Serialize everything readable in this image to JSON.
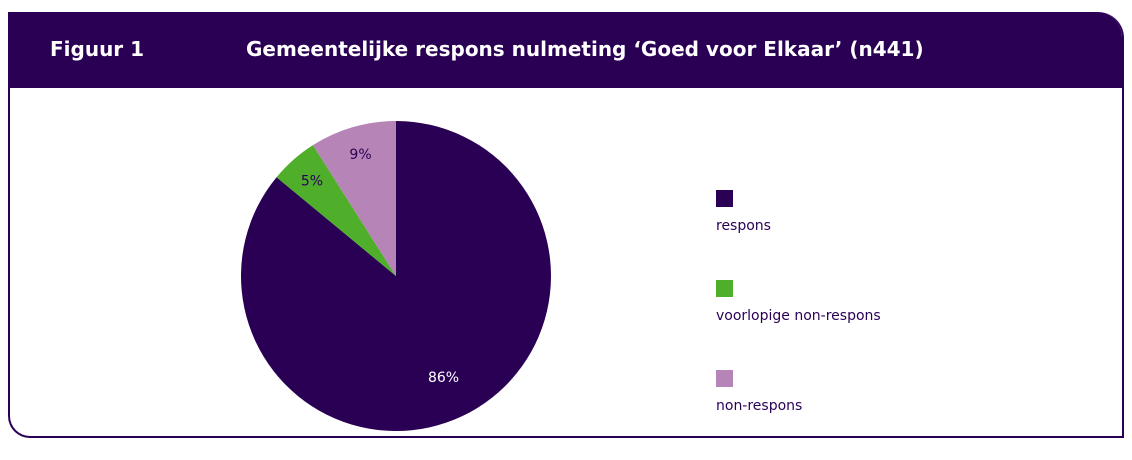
{
  "header": {
    "figure_label": "Figuur 1",
    "title": "Gemeentelijke respons nulmeting ‘Goed voor Elkaar’ (n441)"
  },
  "chart_data": {
    "type": "pie",
    "title": "Gemeentelijke respons nulmeting ‘Goed voor Elkaar’ (n441)",
    "slices": [
      {
        "name": "respons",
        "value": 86,
        "label": "86%",
        "color": "#2a0055",
        "label_color": "#ffffff"
      },
      {
        "name": "voorlopige non-respons",
        "value": 5,
        "label": "5%",
        "color": "#4fae2a",
        "label_color": "#2a0055"
      },
      {
        "name": "non-respons",
        "value": 9,
        "label": "9%",
        "color": "#b784b7",
        "label_color": "#2a0055"
      }
    ],
    "legend_position": "right"
  }
}
